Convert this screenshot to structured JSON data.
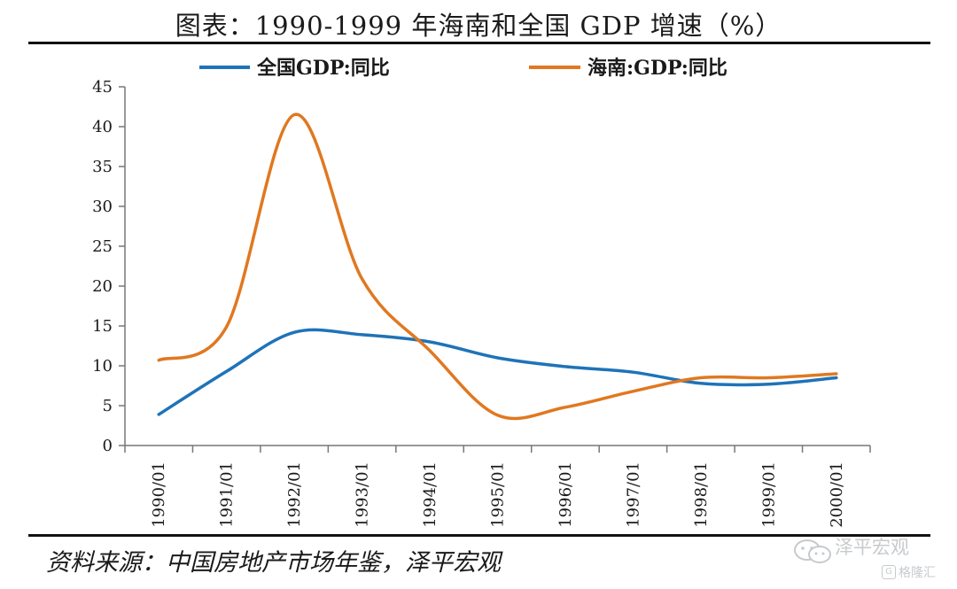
{
  "title": "图表：1990-1999 年海南和全国 GDP 增速（%）",
  "source": "资料来源：中国房地产市场年鉴，泽平宏观",
  "watermark": {
    "line1": "泽平宏观",
    "badge": "G",
    "line2": "格隆汇"
  },
  "colors": {
    "national": "#1f73b8",
    "hainan": "#e07820",
    "axis": "#777777",
    "text": "#1a1a1a"
  },
  "chart_data": {
    "type": "line",
    "categories": [
      "1990/01",
      "1991/01",
      "1992/01",
      "1993/01",
      "1994/01",
      "1995/01",
      "1996/01",
      "1997/01",
      "1998/01",
      "1999/01",
      "2000/01"
    ],
    "series": [
      {
        "name": "全国GDP:同比",
        "key": "national",
        "values": [
          3.9,
          9.3,
          14.2,
          13.9,
          13.0,
          11.0,
          9.9,
          9.2,
          7.8,
          7.7,
          8.5
        ]
      },
      {
        "name": "海南:GDP:同比",
        "key": "hainan",
        "values": [
          10.7,
          14.9,
          41.5,
          20.9,
          11.9,
          3.8,
          4.8,
          6.8,
          8.5,
          8.5,
          9.0
        ],
        "peak": {
          "x": 2.15,
          "y": 41.6
        }
      }
    ],
    "ylim": [
      0,
      45
    ],
    "yticks": [
      0,
      5,
      10,
      15,
      20,
      25,
      30,
      35,
      40,
      45
    ],
    "grid": false,
    "legend": "top"
  }
}
